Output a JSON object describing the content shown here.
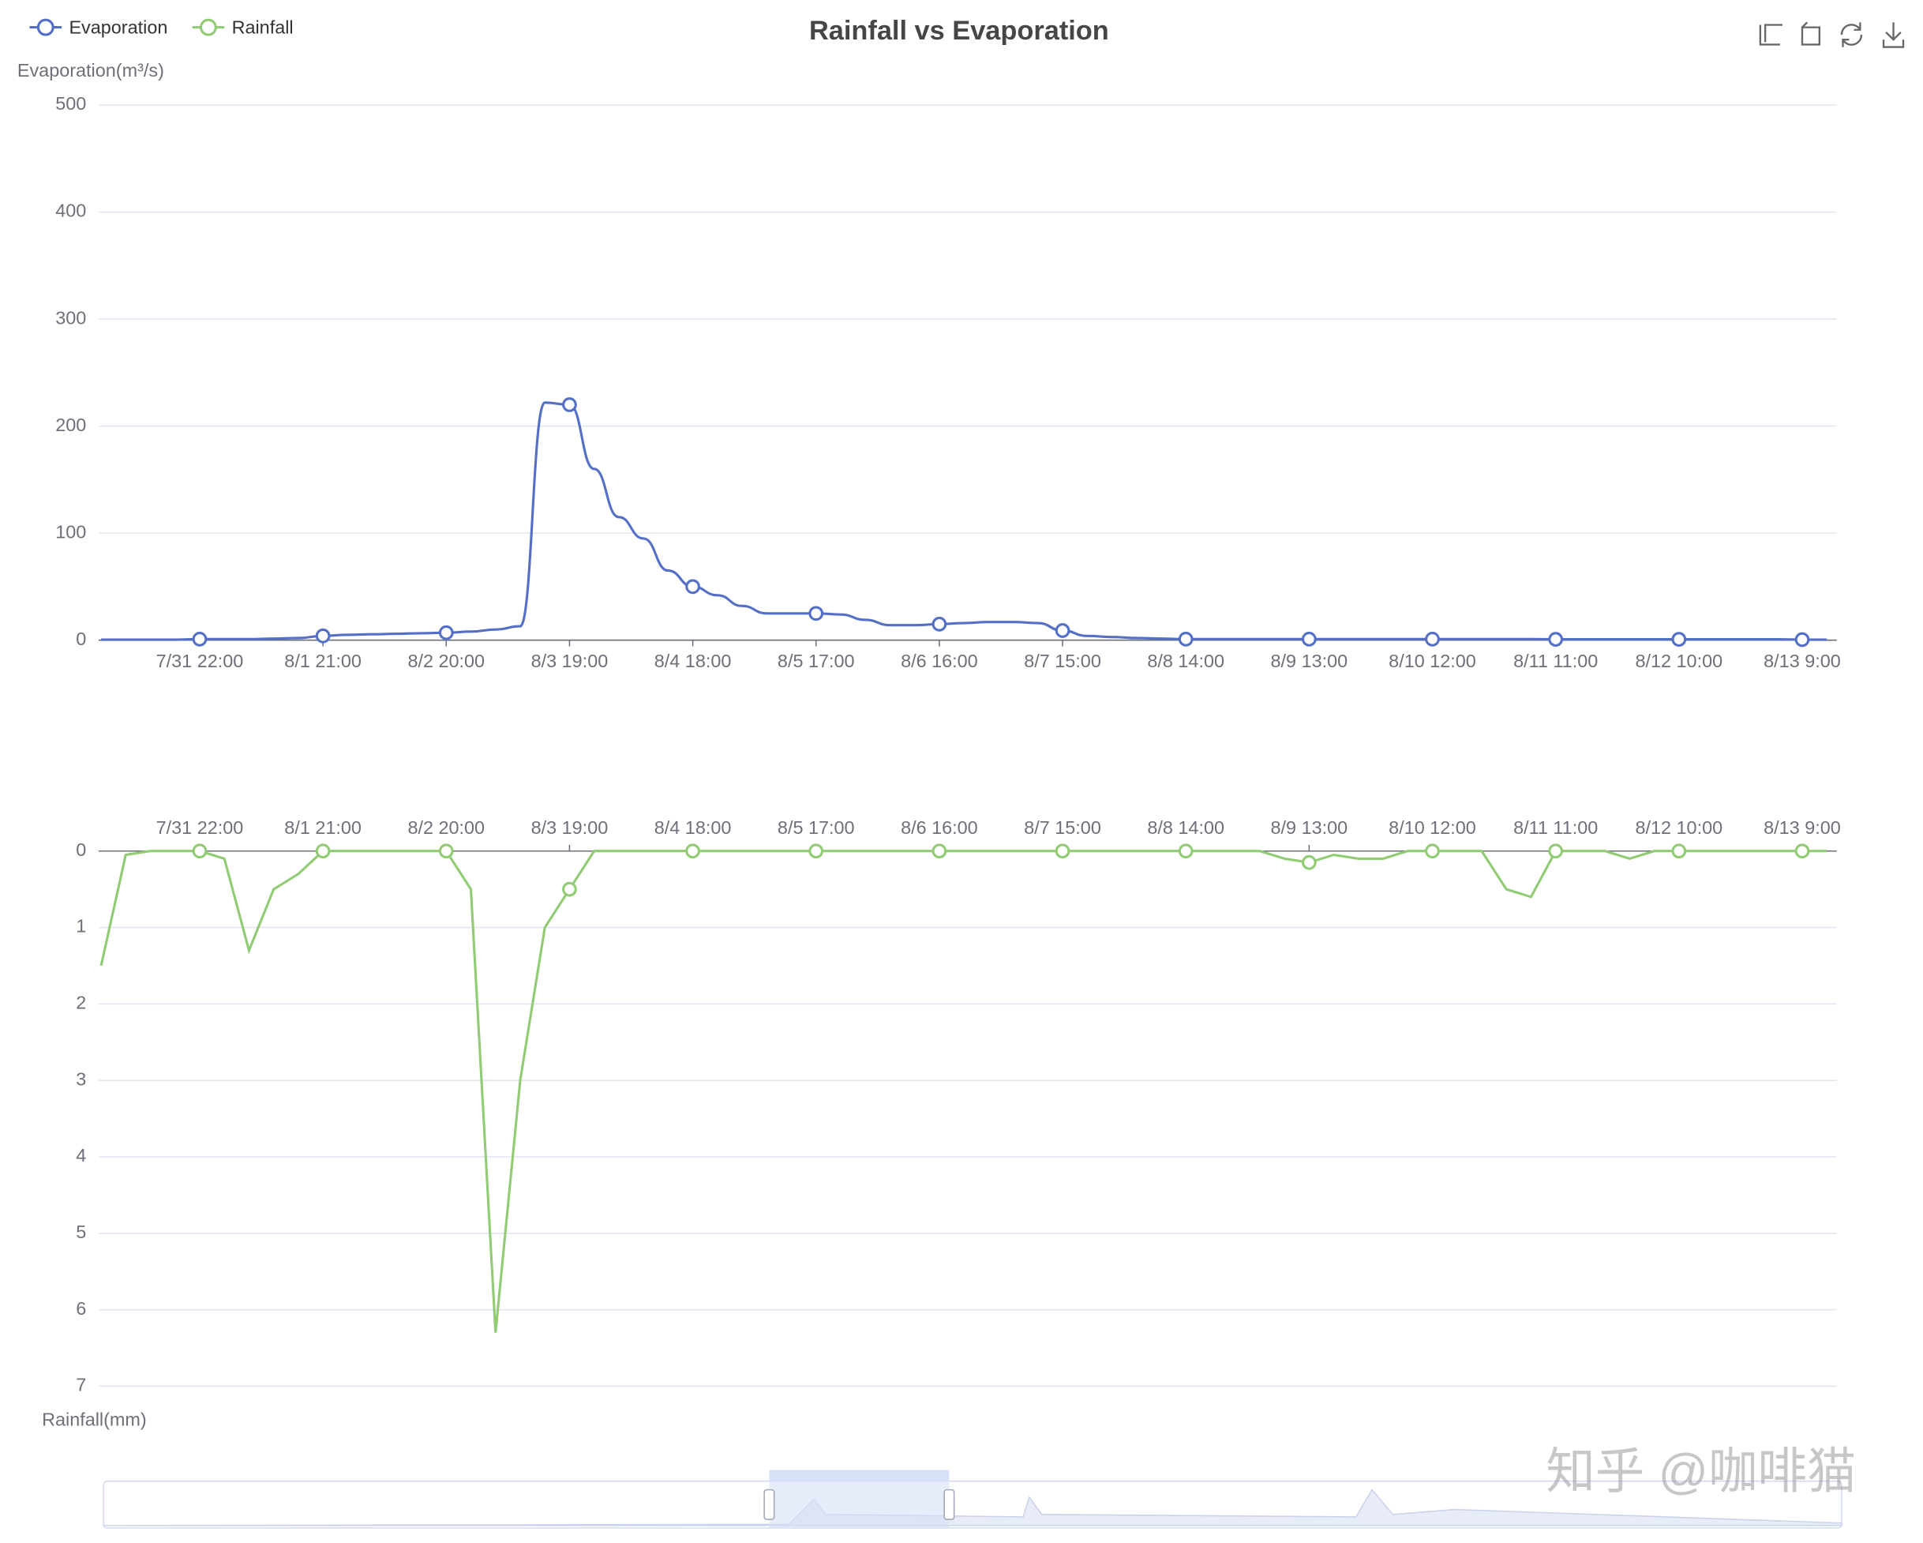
{
  "chart_data": [
    {
      "type": "line",
      "title": "Rainfall vs Evaporation",
      "legend": "top-left",
      "grid": true,
      "y_label": "Evaporation(m³/s)",
      "ylim": [
        0,
        500
      ],
      "yticks": [
        0,
        100,
        200,
        300,
        400,
        500
      ],
      "x_axis_position": "bottom",
      "y_inverse": false,
      "categories": [
        null,
        null,
        null,
        null,
        "7/31 22:00",
        null,
        null,
        null,
        null,
        "8/1 21:00",
        null,
        null,
        null,
        null,
        "8/2 20:00",
        null,
        null,
        null,
        null,
        "8/3 19:00",
        null,
        null,
        null,
        null,
        "8/4 18:00",
        null,
        null,
        null,
        null,
        "8/5 17:00",
        null,
        null,
        null,
        null,
        "8/6 16:00",
        null,
        null,
        null,
        null,
        "8/7 15:00",
        null,
        null,
        null,
        null,
        "8/8 14:00",
        null,
        null,
        null,
        null,
        "8/9 13:00",
        null,
        null,
        null,
        null,
        "8/10 12:00",
        null,
        null,
        null,
        null,
        "8/11 11:00",
        null,
        null,
        null,
        null,
        "8/12 10:00",
        null,
        null,
        null,
        null,
        "8/13 9:00",
        null
      ],
      "series": [
        {
          "name": "Evaporation",
          "color": "#5470c6",
          "smooth": true,
          "values": [
            0.5,
            0.5,
            0.5,
            0.5,
            1,
            1,
            1,
            1.5,
            2,
            4,
            5,
            5.5,
            6,
            6.5,
            7,
            8,
            10,
            13,
            222,
            220,
            160,
            115,
            95,
            65,
            50,
            42,
            32,
            25,
            25,
            25,
            24,
            19,
            14,
            14,
            15,
            16,
            17,
            17,
            16,
            9,
            4,
            3,
            2,
            1.5,
            1,
            1,
            1,
            1,
            1,
            1,
            1,
            1,
            1,
            1,
            1,
            1,
            1,
            1,
            1,
            0.8,
            0.8,
            0.8,
            0.8,
            0.8,
            0.8,
            0.8,
            0.8,
            0.8,
            0.8,
            0.5,
            0.5
          ]
        }
      ]
    },
    {
      "type": "line",
      "grid": true,
      "y_label": "Rainfall(mm)",
      "ylim": [
        0,
        7
      ],
      "yticks": [
        0,
        1,
        2,
        3,
        4,
        5,
        6,
        7
      ],
      "x_axis_position": "top",
      "y_inverse": true,
      "categories": [
        null,
        null,
        null,
        null,
        "7/31 22:00",
        null,
        null,
        null,
        null,
        "8/1 21:00",
        null,
        null,
        null,
        null,
        "8/2 20:00",
        null,
        null,
        null,
        null,
        "8/3 19:00",
        null,
        null,
        null,
        null,
        "8/4 18:00",
        null,
        null,
        null,
        null,
        "8/5 17:00",
        null,
        null,
        null,
        null,
        "8/6 16:00",
        null,
        null,
        null,
        null,
        "8/7 15:00",
        null,
        null,
        null,
        null,
        "8/8 14:00",
        null,
        null,
        null,
        null,
        "8/9 13:00",
        null,
        null,
        null,
        null,
        "8/10 12:00",
        null,
        null,
        null,
        null,
        "8/11 11:00",
        null,
        null,
        null,
        null,
        "8/12 10:00",
        null,
        null,
        null,
        null,
        "8/13 9:00",
        null
      ],
      "series": [
        {
          "name": "Rainfall",
          "color": "#91cc75",
          "smooth": false,
          "values": [
            1.5,
            0.05,
            0,
            0,
            0,
            0.1,
            1.3,
            0.5,
            0.3,
            0,
            0,
            0,
            0,
            0,
            0,
            0.5,
            6.3,
            3,
            1,
            0.5,
            0,
            0,
            0,
            0,
            0,
            0,
            0,
            0,
            0,
            0,
            0,
            0,
            0,
            0,
            0,
            0,
            0,
            0,
            0,
            0,
            0,
            0,
            0,
            0,
            0,
            0,
            0,
            0,
            0.1,
            0.15,
            0.05,
            0.1,
            0.1,
            0,
            0,
            0,
            0,
            0.5,
            0.6,
            0,
            0,
            0,
            0.1,
            0,
            0,
            0,
            0,
            0,
            0,
            0,
            0
          ]
        }
      ]
    }
  ],
  "watermark": "知乎 @咖啡猫"
}
